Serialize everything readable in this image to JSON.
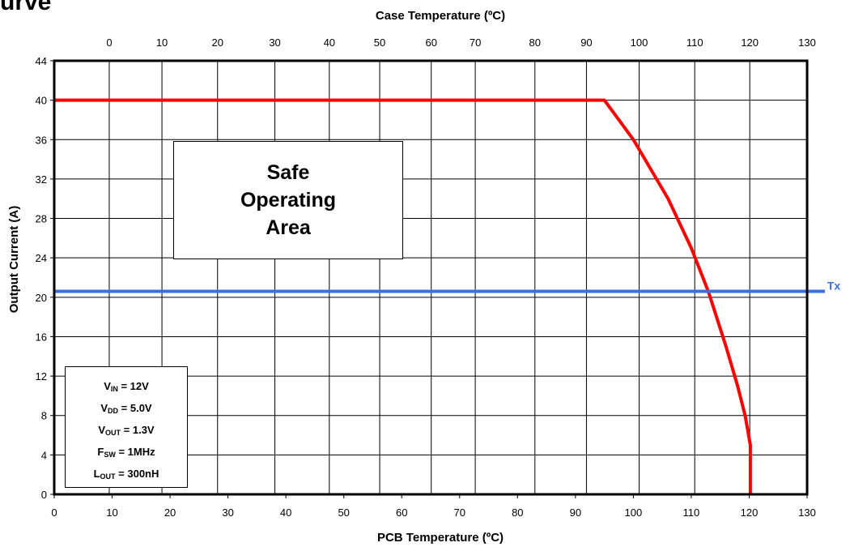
{
  "page": {
    "title_fragment": "urve"
  },
  "chart_data": {
    "type": "line",
    "xlabel": "PCB Temperature (ºC)",
    "x2label": "Case Temperature (ºC)",
    "ylabel": "Output Current  (A)",
    "xlim": [
      0,
      130
    ],
    "ylim": [
      0,
      44
    ],
    "x_ticks": [
      0,
      10,
      20,
      30,
      40,
      50,
      60,
      70,
      80,
      90,
      100,
      110,
      120,
      130
    ],
    "y_ticks": [
      0,
      4,
      8,
      12,
      16,
      20,
      24,
      28,
      32,
      36,
      40,
      44
    ],
    "x2_ticks": [
      {
        "label": "0",
        "pcb": 9.5
      },
      {
        "label": "10",
        "pcb": 18.6
      },
      {
        "label": "20",
        "pcb": 28.2
      },
      {
        "label": "30",
        "pcb": 38.1
      },
      {
        "label": "40",
        "pcb": 47.5
      },
      {
        "label": "50",
        "pcb": 56.2
      },
      {
        "label": "60",
        "pcb": 65.1
      },
      {
        "label": "70",
        "pcb": 72.7
      },
      {
        "label": "80",
        "pcb": 83.0
      },
      {
        "label": "90",
        "pcb": 91.9
      },
      {
        "label": "100",
        "pcb": 101.0
      },
      {
        "label": "110",
        "pcb": 110.6
      },
      {
        "label": "120",
        "pcb": 120.1
      },
      {
        "label": "130",
        "pcb": 130.0
      }
    ],
    "grid": true,
    "series": [
      {
        "color": "#ff0000",
        "x": [
          0,
          95,
          100,
          106,
          110,
          113,
          116,
          118,
          119.3,
          120.2,
          120.2
        ],
        "y": [
          40,
          40,
          36,
          30,
          25,
          20.5,
          15,
          11,
          8,
          5,
          0
        ]
      },
      {
        "name": "Tx",
        "color": "#3a6fe0",
        "x": [
          0,
          130
        ],
        "y": [
          20.6,
          20.6
        ]
      }
    ],
    "annotations": {
      "safe_area": "Safe\nOperating\nArea",
      "conditions": [
        {
          "main": "V",
          "sub": "IN",
          "rest": " = 12V"
        },
        {
          "main": "V",
          "sub": "DD",
          "rest": " = 5.0V"
        },
        {
          "main": "V",
          "sub": "OUT",
          "rest": " = 1.3V"
        },
        {
          "main": "F",
          "sub": "SW",
          "rest": " = 1MHz"
        },
        {
          "main": "L",
          "sub": "OUT",
          "rest": " = 300nH"
        }
      ]
    }
  }
}
